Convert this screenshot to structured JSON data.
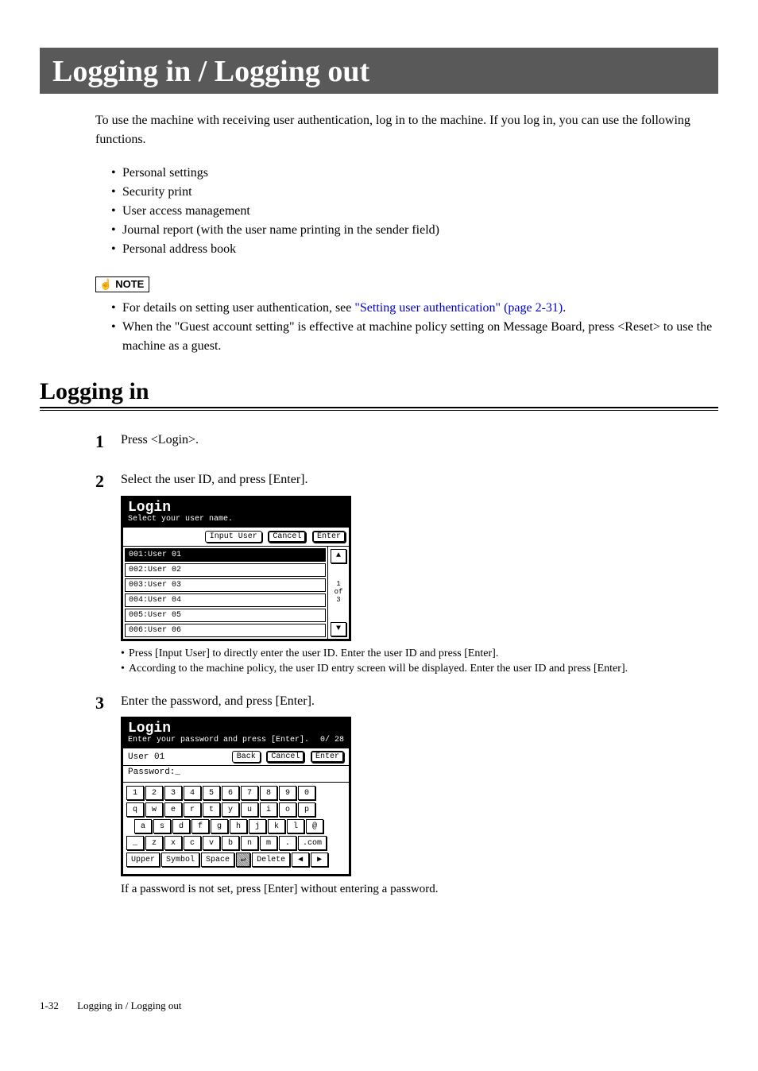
{
  "title": "Logging in / Logging out",
  "intro": "To use the machine with receiving user authentication, log in to the machine.  If you log in, you can use the following functions.",
  "features": [
    "Personal settings",
    "Security print",
    "User access management",
    "Journal report (with the user name printing in the sender field)",
    "Personal address book"
  ],
  "note_label": "NOTE",
  "notes": {
    "n1_prefix": "For details on setting user authentication, see ",
    "n1_link": "\"Setting user authentication\" (page 2-31)",
    "n1_suffix": ".",
    "n2": "When the \"Guest account setting\" is effective at machine policy setting on Message Board, press <Reset> to use the machine as a guest."
  },
  "section": "Logging in",
  "steps": {
    "s1": {
      "num": "1",
      "text": "Press <Login>."
    },
    "s2": {
      "num": "2",
      "text": "Select the user ID, and press [Enter].",
      "lcd": {
        "title": "Login",
        "sub": "Select your user name.",
        "btn_input": "Input User",
        "btn_cancel": "Cancel",
        "btn_enter": "Enter",
        "rows": [
          "001:User 01",
          "002:User 02",
          "003:User 03",
          "004:User 04",
          "005:User 05",
          "006:User 06"
        ],
        "page_top": "1",
        "page_mid": "of",
        "page_bot": "3",
        "up": "▲",
        "down": "▼"
      },
      "notes": [
        "Press [Input User] to directly enter the user ID.  Enter the user ID and press [Enter].",
        "According to the machine policy,  the user ID entry screen will be displayed.  Enter the user ID and press [Enter]."
      ]
    },
    "s3": {
      "num": "3",
      "text": "Enter the password, and press [Enter].",
      "lcd": {
        "title": "Login",
        "sub": "Enter your password and press [Enter].",
        "counter": "0/ 28",
        "user": "User 01",
        "btn_back": "Back",
        "btn_cancel": "Cancel",
        "btn_enter": "Enter",
        "pw_label": "Password:_",
        "row1": [
          "1",
          "2",
          "3",
          "4",
          "5",
          "6",
          "7",
          "8",
          "9",
          "0"
        ],
        "row2": [
          "q",
          "w",
          "e",
          "r",
          "t",
          "y",
          "u",
          "i",
          "o",
          "p"
        ],
        "row3": [
          "a",
          "s",
          "d",
          "f",
          "g",
          "h",
          "j",
          "k",
          "l",
          "@"
        ],
        "row4": [
          "_",
          "z",
          "x",
          "c",
          "v",
          "b",
          "n",
          "m",
          ".",
          ".com"
        ],
        "row5": [
          "Upper",
          "Symbol",
          "Space",
          "↵",
          "Delete",
          "◀",
          "▶"
        ]
      },
      "after": "If a password is not set, press [Enter] without entering a password."
    }
  },
  "footer": {
    "page": "1-32",
    "title": "Logging in / Logging out"
  },
  "colors": {
    "titlebar_bg": "#595959",
    "link": "#0000cc"
  }
}
